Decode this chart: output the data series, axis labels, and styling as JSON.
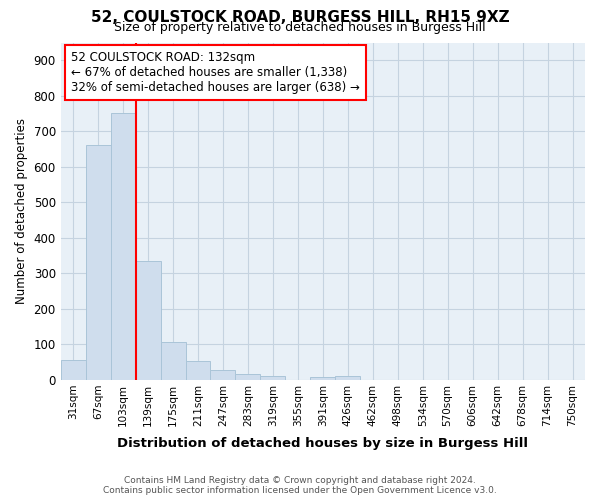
{
  "title": "52, COULSTOCK ROAD, BURGESS HILL, RH15 9XZ",
  "subtitle": "Size of property relative to detached houses in Burgess Hill",
  "xlabel": "Distribution of detached houses by size in Burgess Hill",
  "ylabel": "Number of detached properties",
  "bar_labels": [
    "31sqm",
    "67sqm",
    "103sqm",
    "139sqm",
    "175sqm",
    "211sqm",
    "247sqm",
    "283sqm",
    "319sqm",
    "355sqm",
    "391sqm",
    "426sqm",
    "462sqm",
    "498sqm",
    "534sqm",
    "570sqm",
    "606sqm",
    "642sqm",
    "678sqm",
    "714sqm",
    "750sqm"
  ],
  "bar_values": [
    55,
    660,
    750,
    335,
    107,
    52,
    27,
    15,
    10,
    0,
    8,
    9,
    0,
    0,
    0,
    0,
    0,
    0,
    0,
    0,
    0
  ],
  "bar_color": "#cfdded",
  "bar_edge_color": "#aac4d8",
  "ylim": [
    0,
    950
  ],
  "yticks": [
    0,
    100,
    200,
    300,
    400,
    500,
    600,
    700,
    800,
    900
  ],
  "red_line_x": 2.5,
  "annotation_line1": "52 COULSTOCK ROAD: 132sqm",
  "annotation_line2": "← 67% of detached houses are smaller (1,338)",
  "annotation_line3": "32% of semi-detached houses are larger (638) →",
  "footer_line1": "Contains HM Land Registry data © Crown copyright and database right 2024.",
  "footer_line2": "Contains public sector information licensed under the Open Government Licence v3.0.",
  "background_color": "#ffffff",
  "plot_bg_color": "#e8f0f7",
  "grid_color": "#c5d3e0"
}
